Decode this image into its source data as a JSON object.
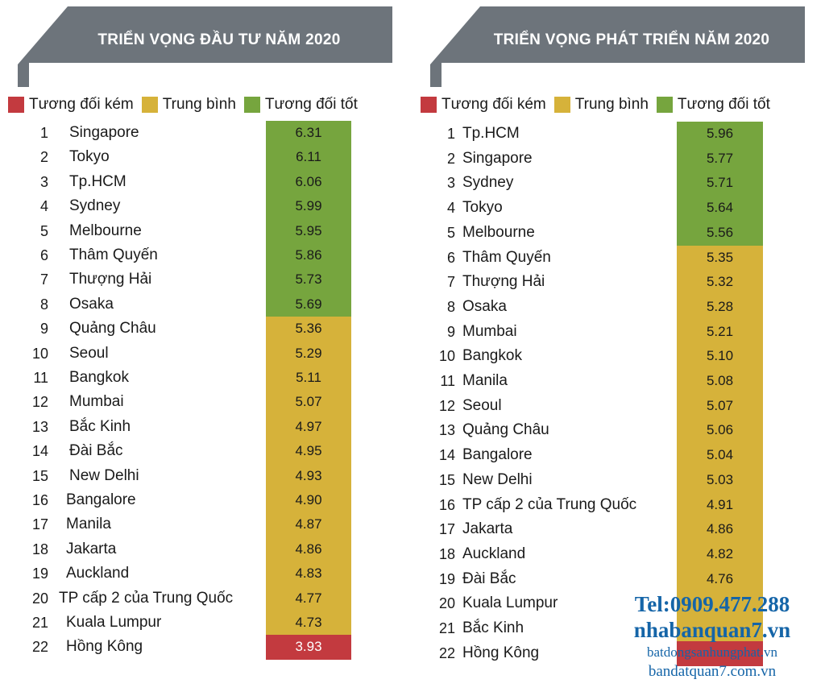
{
  "colors": {
    "banner": "#6d747b",
    "banner_dark": "#9aa0a6",
    "poor": "#c33a3f",
    "average": "#d6b23a",
    "good": "#76a53e"
  },
  "legend": [
    {
      "key": "poor",
      "label": "Tương đối kém"
    },
    {
      "key": "average",
      "label": "Trung bình"
    },
    {
      "key": "good",
      "label": "Tương đối tốt"
    }
  ],
  "chart_data": [
    {
      "type": "table",
      "title": "TRIỂN VỌNG ĐẦU TƯ NĂM 2020",
      "rows": [
        {
          "rank": "1",
          "city": "Singapore",
          "value": "6.31",
          "category": "good"
        },
        {
          "rank": "2",
          "city": "Tokyo",
          "value": "6.11",
          "category": "good"
        },
        {
          "rank": "3",
          "city": "Tp.HCM",
          "value": "6.06",
          "category": "good"
        },
        {
          "rank": "4",
          "city": "Sydney",
          "value": "5.99",
          "category": "good"
        },
        {
          "rank": "5",
          "city": "Melbourne",
          "value": "5.95",
          "category": "good"
        },
        {
          "rank": "6",
          "city": "Thâm Quyến",
          "value": "5.86",
          "category": "good"
        },
        {
          "rank": "7",
          "city": "Thượng Hải",
          "value": "5.73",
          "category": "good"
        },
        {
          "rank": "8",
          "city": "Osaka",
          "value": "5.69",
          "category": "good"
        },
        {
          "rank": "9",
          "city": "Quảng Châu",
          "value": "5.36",
          "category": "average"
        },
        {
          "rank": "10",
          "city": "Seoul",
          "value": "5.29",
          "category": "average"
        },
        {
          "rank": "11",
          "city": "Bangkok",
          "value": "5.11",
          "category": "average"
        },
        {
          "rank": "12",
          "city": "Mumbai",
          "value": "5.07",
          "category": "average"
        },
        {
          "rank": "13",
          "city": "Bắc Kinh",
          "value": "4.97",
          "category": "average"
        },
        {
          "rank": "14",
          "city": "Đài Bắc",
          "value": "4.95",
          "category": "average"
        },
        {
          "rank": "15",
          "city": "New Delhi",
          "value": "4.93",
          "category": "average"
        },
        {
          "rank": "16",
          "city": "Bangalore",
          "value": "4.90",
          "category": "average"
        },
        {
          "rank": "17",
          "city": "Manila",
          "value": "4.87",
          "category": "average"
        },
        {
          "rank": "18",
          "city": "Jakarta",
          "value": "4.86",
          "category": "average"
        },
        {
          "rank": "19",
          "city": "Auckland",
          "value": "4.83",
          "category": "average"
        },
        {
          "rank": "20",
          "city": "TP cấp 2 của Trung Quốc",
          "value": "4.77",
          "category": "average"
        },
        {
          "rank": "21",
          "city": "Kuala Lumpur",
          "value": "4.73",
          "category": "average"
        },
        {
          "rank": "22",
          "city": "Hồng Kông",
          "value": "3.93",
          "category": "poor"
        }
      ]
    },
    {
      "type": "table",
      "title": "TRIỂN VỌNG PHÁT TRIỂN NĂM 2020",
      "rows": [
        {
          "rank": "1",
          "city": "Tp.HCM",
          "value": "5.96",
          "category": "good"
        },
        {
          "rank": "2",
          "city": "Singapore",
          "value": "5.77",
          "category": "good"
        },
        {
          "rank": "3",
          "city": "Sydney",
          "value": "5.71",
          "category": "good"
        },
        {
          "rank": "4",
          "city": "Tokyo",
          "value": "5.64",
          "category": "good"
        },
        {
          "rank": "5",
          "city": "Melbourne",
          "value": "5.56",
          "category": "good"
        },
        {
          "rank": "6",
          "city": "Thâm Quyến",
          "value": "5.35",
          "category": "average"
        },
        {
          "rank": "7",
          "city": "Thượng Hải",
          "value": "5.32",
          "category": "average"
        },
        {
          "rank": "8",
          "city": "Osaka",
          "value": "5.28",
          "category": "average"
        },
        {
          "rank": "9",
          "city": "Mumbai",
          "value": "5.21",
          "category": "average"
        },
        {
          "rank": "10",
          "city": "Bangkok",
          "value": "5.10",
          "category": "average"
        },
        {
          "rank": "11",
          "city": "Manila",
          "value": "5.08",
          "category": "average"
        },
        {
          "rank": "12",
          "city": "Seoul",
          "value": "5.07",
          "category": "average"
        },
        {
          "rank": "13",
          "city": "Quảng Châu",
          "value": "5.06",
          "category": "average"
        },
        {
          "rank": "14",
          "city": "Bangalore",
          "value": "5.04",
          "category": "average"
        },
        {
          "rank": "15",
          "city": "New Delhi",
          "value": "5.03",
          "category": "average"
        },
        {
          "rank": "16",
          "city": "TP cấp 2 của Trung Quốc",
          "value": "4.91",
          "category": "average"
        },
        {
          "rank": "17",
          "city": "Jakarta",
          "value": "4.86",
          "category": "average"
        },
        {
          "rank": "18",
          "city": "Auckland",
          "value": "4.82",
          "category": "average"
        },
        {
          "rank": "19",
          "city": "Đài Bắc",
          "value": "4.76",
          "category": "average"
        },
        {
          "rank": "20",
          "city": "Kuala Lumpur",
          "value": "",
          "category": "average"
        },
        {
          "rank": "21",
          "city": "Bắc Kinh",
          "value": "",
          "category": "average"
        },
        {
          "rank": "22",
          "city": "Hồng Kông",
          "value": "",
          "category": "poor"
        }
      ]
    }
  ],
  "watermark": {
    "tel": "Tel:0909.477.288",
    "site1": "nhabanquan7.vn",
    "site2": "batdongsanhungphat.vn",
    "site3": "bandatquan7.com.vn"
  }
}
